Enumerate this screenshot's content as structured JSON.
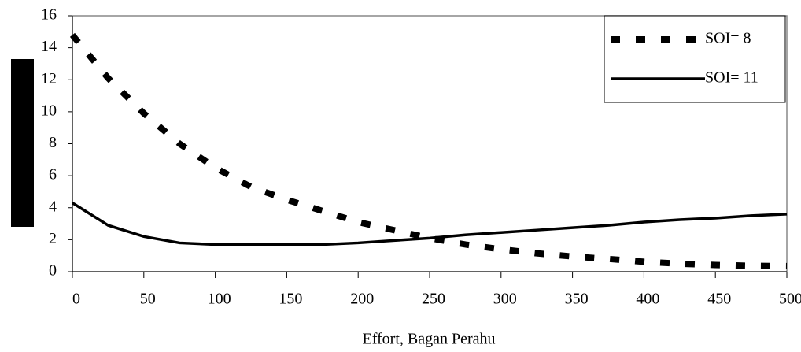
{
  "chart_data": {
    "type": "line",
    "x_label": "Effort, Bagan Perahu",
    "x": [
      0,
      25,
      50,
      75,
      100,
      125,
      150,
      175,
      200,
      225,
      250,
      275,
      300,
      325,
      350,
      375,
      400,
      425,
      450,
      475,
      500
    ],
    "series": [
      {
        "name": "SOI= 8",
        "color": "#000000",
        "style": "dashed",
        "values": [
          14.8,
          12.1,
          9.9,
          8.0,
          6.5,
          5.3,
          4.5,
          3.8,
          3.1,
          2.6,
          2.1,
          1.7,
          1.4,
          1.15,
          0.95,
          0.8,
          0.62,
          0.5,
          0.42,
          0.37,
          0.35
        ]
      },
      {
        "name": "SOI= 11",
        "color": "#000000",
        "style": "solid",
        "values": [
          4.3,
          2.9,
          2.2,
          1.8,
          1.7,
          1.7,
          1.7,
          1.7,
          1.8,
          1.95,
          2.1,
          2.3,
          2.45,
          2.6,
          2.75,
          2.9,
          3.1,
          3.25,
          3.35,
          3.5,
          3.6
        ]
      }
    ],
    "xlim": [
      0,
      500
    ],
    "xticks": [
      0,
      50,
      100,
      150,
      200,
      250,
      300,
      350,
      400,
      450,
      500
    ],
    "ylim": [
      0,
      16
    ],
    "yticks": [
      0,
      2,
      4,
      6,
      8,
      10,
      12,
      14,
      16
    ],
    "legend": "upper right"
  }
}
